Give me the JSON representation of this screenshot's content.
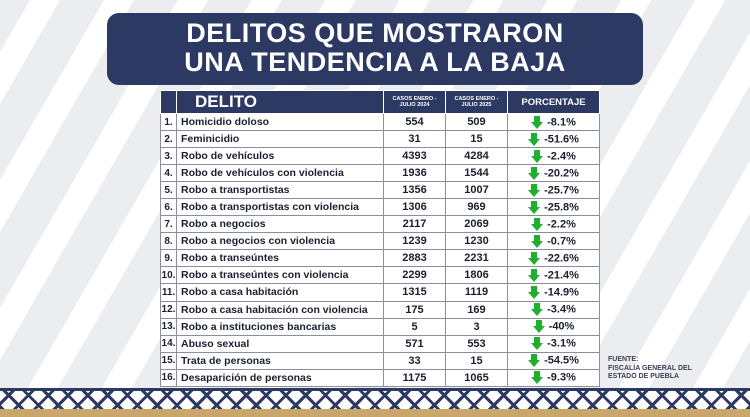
{
  "title": {
    "line1": "DELITOS QUE MOSTRARON",
    "line2": "UNA TENDENCIA A LA BAJA"
  },
  "table": {
    "headers": {
      "delito": "DELITO",
      "year2024": "CASOS ENERO - JULIO 2024",
      "year2025": "CASOS ENERO - JULIO 2025",
      "porcentaje": "PORCENTAJE"
    },
    "rows": [
      {
        "n": "1.",
        "delito": "Homicidio doloso",
        "v2024": "554",
        "v2025": "509",
        "pct": "-8.1%"
      },
      {
        "n": "2.",
        "delito": "Feminicidio",
        "v2024": "31",
        "v2025": "15",
        "pct": "-51.6%"
      },
      {
        "n": "3.",
        "delito": "Robo de vehículos",
        "v2024": "4393",
        "v2025": "4284",
        "pct": "-2.4%"
      },
      {
        "n": "4.",
        "delito": "Robo de vehículos con violencia",
        "v2024": "1936",
        "v2025": "1544",
        "pct": "-20.2%"
      },
      {
        "n": "5.",
        "delito": "Robo a transportistas",
        "v2024": "1356",
        "v2025": "1007",
        "pct": "-25.7%"
      },
      {
        "n": "6.",
        "delito": "Robo a transportistas con violencia",
        "v2024": "1306",
        "v2025": "969",
        "pct": "-25.8%"
      },
      {
        "n": "7.",
        "delito": "Robo a negocios",
        "v2024": "2117",
        "v2025": "2069",
        "pct": "-2.2%"
      },
      {
        "n": "8.",
        "delito": "Robo a negocios con violencia",
        "v2024": "1239",
        "v2025": "1230",
        "pct": "-0.7%"
      },
      {
        "n": "9.",
        "delito": "Robo a transeúntes",
        "v2024": "2883",
        "v2025": "2231",
        "pct": "-22.6%"
      },
      {
        "n": "10.",
        "delito": "Robo a transeúntes con violencia",
        "v2024": "2299",
        "v2025": "1806",
        "pct": "-21.4%"
      },
      {
        "n": "11.",
        "delito": "Robo a casa habitación",
        "v2024": "1315",
        "v2025": "1119",
        "pct": "-14.9%"
      },
      {
        "n": "12.",
        "delito": "Robo a casa habitación con violencia",
        "v2024": "175",
        "v2025": "169",
        "pct": "-3.4%"
      },
      {
        "n": "13.",
        "delito": "Robo a instituciones bancarias",
        "v2024": "5",
        "v2025": "3",
        "pct": "-40%"
      },
      {
        "n": "14.",
        "delito": "Abuso sexual",
        "v2024": "571",
        "v2025": "553",
        "pct": "-3.1%"
      },
      {
        "n": "15.",
        "delito": "Trata de personas",
        "v2024": "33",
        "v2025": "15",
        "pct": "-54.5%"
      },
      {
        "n": "16.",
        "delito": "Desaparición de personas",
        "v2024": "1175",
        "v2025": "1065",
        "pct": "-9.3%"
      }
    ]
  },
  "source": {
    "line1": "FUENTE:",
    "line2": "FISCALÍA GENERAL DEL",
    "line3": "ESTADO DE PUEBLA"
  },
  "icons": {
    "trend": "green-down-arrow-icon"
  },
  "colors": {
    "navy": "#2c3a63",
    "arrow_green": "#1fae2f"
  }
}
